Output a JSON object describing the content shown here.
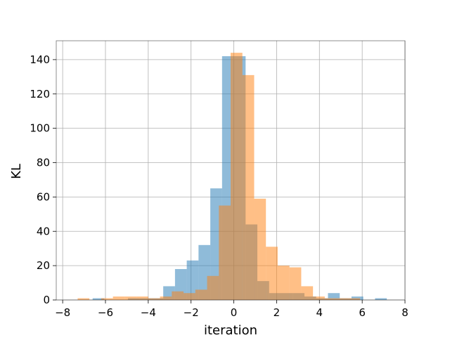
{
  "chart_data": {
    "type": "histogram",
    "title": "",
    "xlabel": "iteration",
    "ylabel": "KL",
    "xlim": [
      -8.3,
      8.0
    ],
    "ylim": [
      0,
      151
    ],
    "grid": true,
    "legend": null,
    "x_ticks": [
      "−8",
      "−6",
      "−4",
      "−2",
      "0",
      "2",
      "4",
      "6",
      "8"
    ],
    "x_tick_values": [
      -8,
      -6,
      -4,
      -2,
      0,
      2,
      4,
      6,
      8
    ],
    "y_ticks": [
      "0",
      "20",
      "40",
      "60",
      "80",
      "100",
      "120",
      "140"
    ],
    "y_tick_values": [
      0,
      20,
      40,
      60,
      80,
      100,
      120,
      140
    ],
    "series": [
      {
        "color": "#1f77b4",
        "opacity": 0.5,
        "bins": [
          [
            -6.6,
            -6.05,
            1
          ],
          [
            -6.05,
            -5.5,
            0
          ],
          [
            -5.5,
            -4.95,
            0
          ],
          [
            -4.95,
            -4.4,
            1
          ],
          [
            -4.4,
            -3.85,
            1
          ],
          [
            -3.85,
            -3.3,
            1
          ],
          [
            -3.3,
            -2.75,
            8
          ],
          [
            -2.75,
            -2.2,
            18
          ],
          [
            -2.2,
            -1.65,
            23
          ],
          [
            -1.65,
            -1.1,
            32
          ],
          [
            -1.1,
            -0.55,
            65
          ],
          [
            -0.55,
            0.0,
            142
          ],
          [
            0.0,
            0.55,
            142
          ],
          [
            0.55,
            1.1,
            44
          ],
          [
            1.1,
            1.65,
            11
          ],
          [
            1.65,
            2.2,
            4
          ],
          [
            2.2,
            2.75,
            4
          ],
          [
            2.75,
            3.3,
            4
          ],
          [
            3.3,
            3.85,
            2
          ],
          [
            3.85,
            4.4,
            1
          ],
          [
            4.4,
            4.95,
            4
          ],
          [
            4.95,
            5.5,
            1
          ],
          [
            5.5,
            6.05,
            2
          ],
          [
            6.05,
            6.6,
            0
          ],
          [
            6.6,
            7.15,
            1
          ]
        ]
      },
      {
        "color": "#ff7f0e",
        "opacity": 0.5,
        "bins": [
          [
            -7.3,
            -6.75,
            1
          ],
          [
            -6.75,
            -6.2,
            0
          ],
          [
            -6.2,
            -5.65,
            1
          ],
          [
            -5.65,
            -5.1,
            2
          ],
          [
            -5.1,
            -4.55,
            2
          ],
          [
            -4.55,
            -4.0,
            2
          ],
          [
            -4.0,
            -3.45,
            1
          ],
          [
            -3.45,
            -2.9,
            2
          ],
          [
            -2.9,
            -2.35,
            5
          ],
          [
            -2.35,
            -1.8,
            4
          ],
          [
            -1.8,
            -1.25,
            6
          ],
          [
            -1.25,
            -0.7,
            14
          ],
          [
            -0.7,
            -0.15,
            55
          ],
          [
            -0.15,
            0.4,
            144
          ],
          [
            0.4,
            0.95,
            131
          ],
          [
            0.95,
            1.5,
            59
          ],
          [
            1.5,
            2.05,
            31
          ],
          [
            2.05,
            2.6,
            20
          ],
          [
            2.6,
            3.15,
            19
          ],
          [
            3.15,
            3.7,
            8
          ],
          [
            3.7,
            4.25,
            2
          ],
          [
            4.25,
            4.8,
            1
          ],
          [
            4.8,
            5.35,
            1
          ],
          [
            5.35,
            5.9,
            1
          ],
          [
            5.9,
            6.45,
            0
          ]
        ]
      }
    ]
  }
}
